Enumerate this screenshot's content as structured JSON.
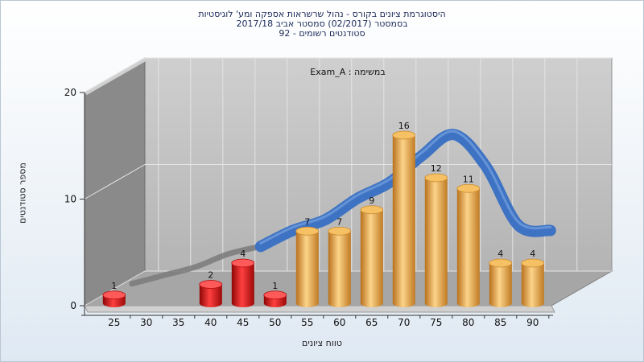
{
  "titles": {
    "line1": "היסטוגרמת ציונים בקורס - נהול שרשראות אספקה ומע' לוגיסטיות",
    "line2": "בסמסטר  (02/2017)  סמסטר אביב 2017/18",
    "line3": "סטודנטים רשומים - 92"
  },
  "chart_data": {
    "type": "bar",
    "annotation": "במשימה : Exam_A",
    "xlabel": "טווח ציונים",
    "ylabel": "מספר סטודנטים",
    "categories": [
      "25",
      "30",
      "35",
      "40",
      "45",
      "50",
      "55",
      "60",
      "65",
      "70",
      "75",
      "80",
      "85",
      "90"
    ],
    "values": [
      1,
      0,
      0,
      2,
      4,
      1,
      7,
      7,
      9,
      16,
      12,
      11,
      4,
      4
    ],
    "bar_value_labels": [
      "1",
      "",
      "",
      "2",
      "4",
      "1",
      "7",
      "7",
      "9",
      "16",
      "12",
      "11",
      "4",
      "4"
    ],
    "ylim": [
      0,
      20
    ],
    "yticks": [
      0,
      10,
      20
    ],
    "curve": [
      1,
      1.8,
      2.6,
      3.8,
      4.5,
      6,
      7,
      9,
      10.5,
      13,
      15,
      12,
      6.5,
      6
    ],
    "grid": true,
    "legend": "none",
    "colors": {
      "fail_bar": "#d81515",
      "pass_bar": "#e8a53d",
      "curve_fail": "#7a7a7a",
      "curve_pass": "#3e73c3",
      "back_wall": "#c3c3c3",
      "side_wall": "#8a8a8a",
      "floor": "#a6a6a6"
    }
  }
}
